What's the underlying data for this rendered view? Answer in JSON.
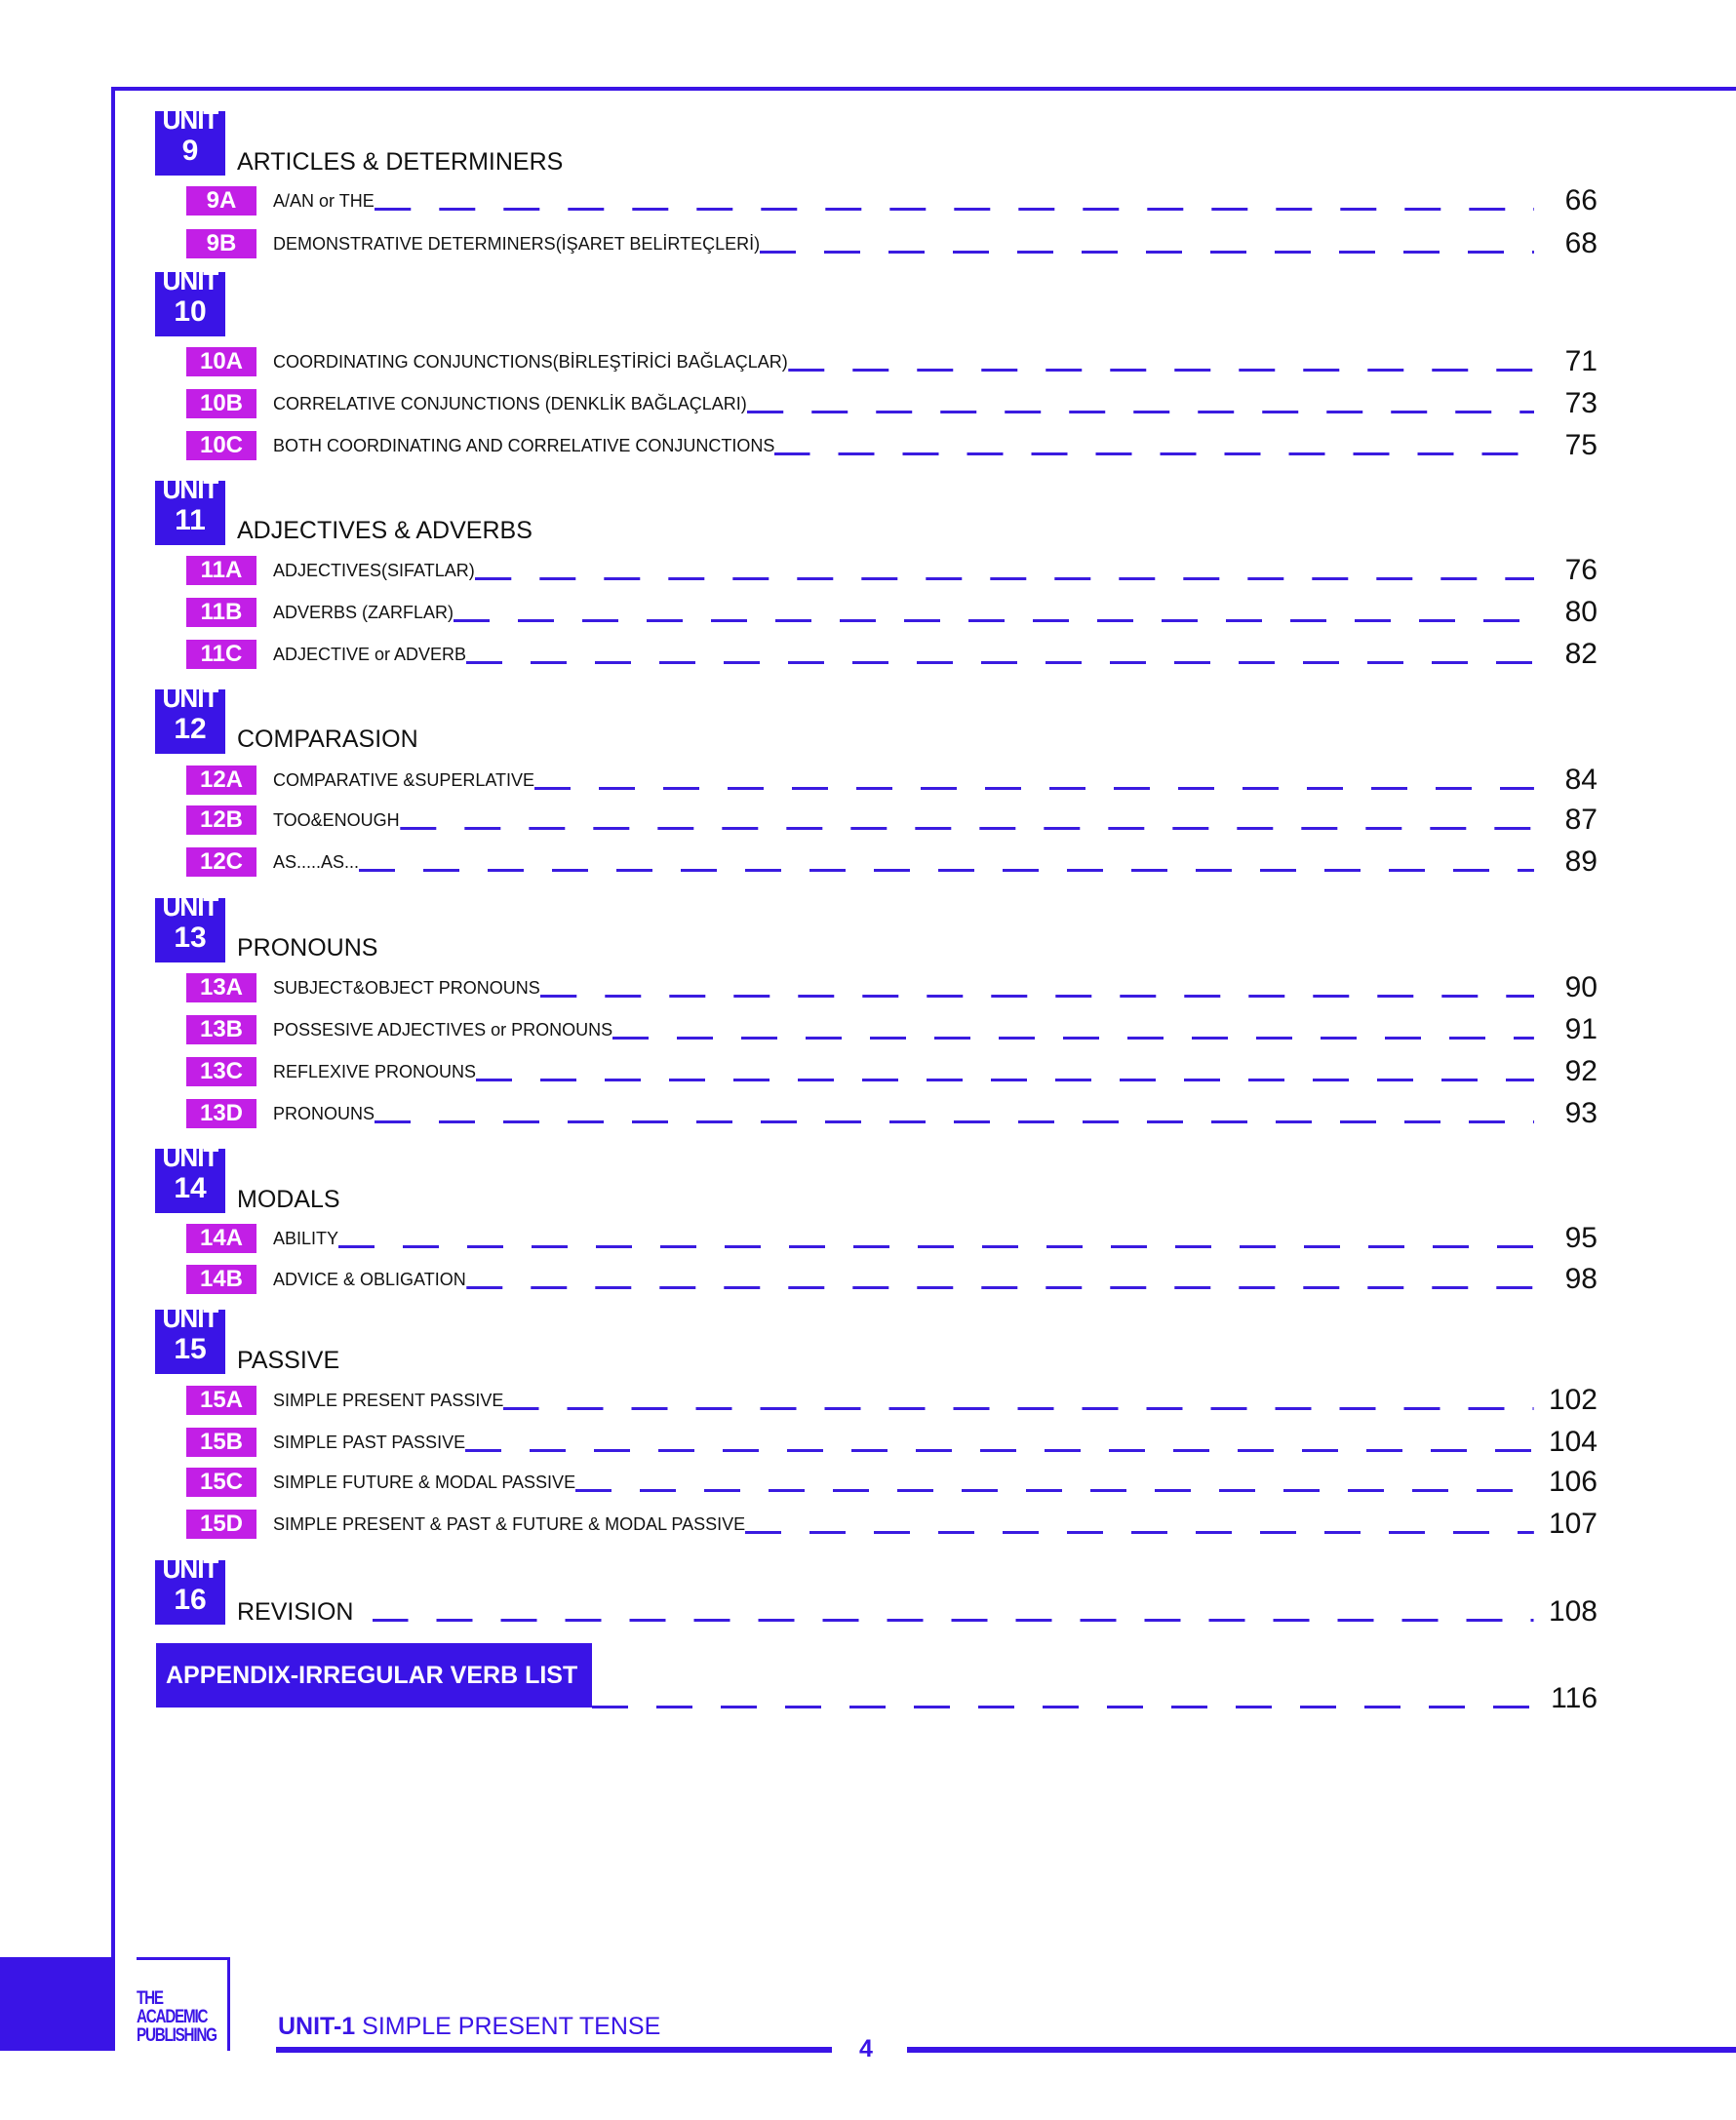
{
  "colors": {
    "accent": "#3a14e6",
    "sub_badge": "#c21fe6"
  },
  "units": [
    {
      "unit_label": "UNIT",
      "number": "9",
      "title": "ARTICLES & DETERMINERS",
      "lessons": [
        {
          "code": "9A",
          "title": "A/AN or THE",
          "page": "66"
        },
        {
          "code": "9B",
          "title": "DEMONSTRATIVE DETERMINERS(İŞARET BELİRTEÇLERİ)",
          "page": "68"
        }
      ]
    },
    {
      "unit_label": "UNIT",
      "number": "10",
      "title": "",
      "lessons": [
        {
          "code": "10A",
          "title": "COORDINATING CONJUNCTIONS(BİRLEŞTİRİCİ BAĞLAÇLAR)",
          "page": "71"
        },
        {
          "code": "10B",
          "title": "CORRELATIVE CONJUNCTIONS (DENKLİK BAĞLAÇLARI)",
          "page": "73"
        },
        {
          "code": "10C",
          "title": "BOTH COORDINATING AND CORRELATIVE CONJUNCTIONS",
          "page": "75"
        }
      ]
    },
    {
      "unit_label": "UNIT",
      "number": "11",
      "title": "ADJECTIVES & ADVERBS",
      "lessons": [
        {
          "code": "11A",
          "title": "ADJECTIVES(SIFATLAR)",
          "page": "76"
        },
        {
          "code": "11B",
          "title": "ADVERBS (ZARFLAR)",
          "page": "80"
        },
        {
          "code": "11C",
          "title": "ADJECTIVE or ADVERB",
          "page": "82"
        }
      ]
    },
    {
      "unit_label": "UNIT",
      "number": "12",
      "title": "COMPARASION",
      "lessons": [
        {
          "code": "12A",
          "title": "COMPARATIVE &SUPERLATIVE",
          "page": "84"
        },
        {
          "code": "12B",
          "title": "TOO&ENOUGH",
          "page": "87"
        },
        {
          "code": "12C",
          "title": "AS.....AS...",
          "page": "89"
        }
      ]
    },
    {
      "unit_label": "UNIT",
      "number": "13",
      "title": "PRONOUNS",
      "lessons": [
        {
          "code": "13A",
          "title": "SUBJECT&OBJECT PRONOUNS",
          "page": "90"
        },
        {
          "code": "13B",
          "title": "POSSESIVE ADJECTIVES or PRONOUNS",
          "page": "91"
        },
        {
          "code": "13C",
          "title": "REFLEXIVE PRONOUNS",
          "page": "92"
        },
        {
          "code": "13D",
          "title": "PRONOUNS",
          "page": "93"
        }
      ]
    },
    {
      "unit_label": "UNIT",
      "number": "14",
      "title": "MODALS",
      "lessons": [
        {
          "code": "14A",
          "title": "ABILITY",
          "page": "95"
        },
        {
          "code": "14B",
          "title": "ADVICE & OBLIGATION",
          "page": "98"
        }
      ]
    },
    {
      "unit_label": "UNIT",
      "number": "15",
      "title": "PASSIVE",
      "lessons": [
        {
          "code": "15A",
          "title": "SIMPLE PRESENT PASSIVE",
          "page": "102"
        },
        {
          "code": "15B",
          "title": "SIMPLE PAST PASSIVE",
          "page": "104"
        },
        {
          "code": "15C",
          "title": "SIMPLE FUTURE & MODAL PASSIVE",
          "page": "106"
        },
        {
          "code": "15D",
          "title": "SIMPLE PRESENT & PAST & FUTURE & MODAL PASSIVE",
          "page": "107"
        }
      ]
    },
    {
      "unit_label": "UNIT",
      "number": "16",
      "title": "REVISION",
      "page": "108",
      "lessons": []
    }
  ],
  "appendix": {
    "title": "APPENDIX-IRREGULAR VERB LIST",
    "page": "116"
  },
  "footer": {
    "logo_text": "THE ACADEMIC PUBLISHING",
    "unit_code": "UNIT-1",
    "unit_title": "SIMPLE PRESENT TENSE",
    "page_number": "4"
  }
}
